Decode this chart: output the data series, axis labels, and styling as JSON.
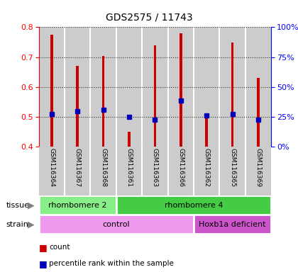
{
  "title": "GDS2575 / 11743",
  "samples": [
    "GSM116364",
    "GSM116367",
    "GSM116368",
    "GSM116361",
    "GSM116363",
    "GSM116366",
    "GSM116362",
    "GSM116365",
    "GSM116369"
  ],
  "count_values": [
    0.775,
    0.67,
    0.705,
    0.45,
    0.74,
    0.78,
    0.51,
    0.75,
    0.63
  ],
  "percentile_values": [
    0.51,
    0.52,
    0.525,
    0.5,
    0.49,
    0.555,
    0.505,
    0.51,
    0.49
  ],
  "bar_bottom": 0.4,
  "ylim": [
    0.4,
    0.8
  ],
  "yticks_left": [
    0.4,
    0.5,
    0.6,
    0.7,
    0.8
  ],
  "yticks_right_pct": [
    0,
    25,
    50,
    75,
    100
  ],
  "bar_color": "#cc0000",
  "percentile_color": "#0000bb",
  "grid_color": "#333333",
  "tissue_groups": [
    {
      "label": "rhombomere 2",
      "start": 0,
      "end": 3,
      "color": "#88ee88"
    },
    {
      "label": "rhombomere 4",
      "start": 3,
      "end": 9,
      "color": "#44cc44"
    }
  ],
  "strain_groups": [
    {
      "label": "control",
      "start": 0,
      "end": 6,
      "color": "#ee99ee"
    },
    {
      "label": "Hoxb1a deficient",
      "start": 6,
      "end": 9,
      "color": "#cc55cc"
    }
  ],
  "bg_color": "#cccccc",
  "plot_bg": "#ffffff",
  "bar_width": 0.1
}
